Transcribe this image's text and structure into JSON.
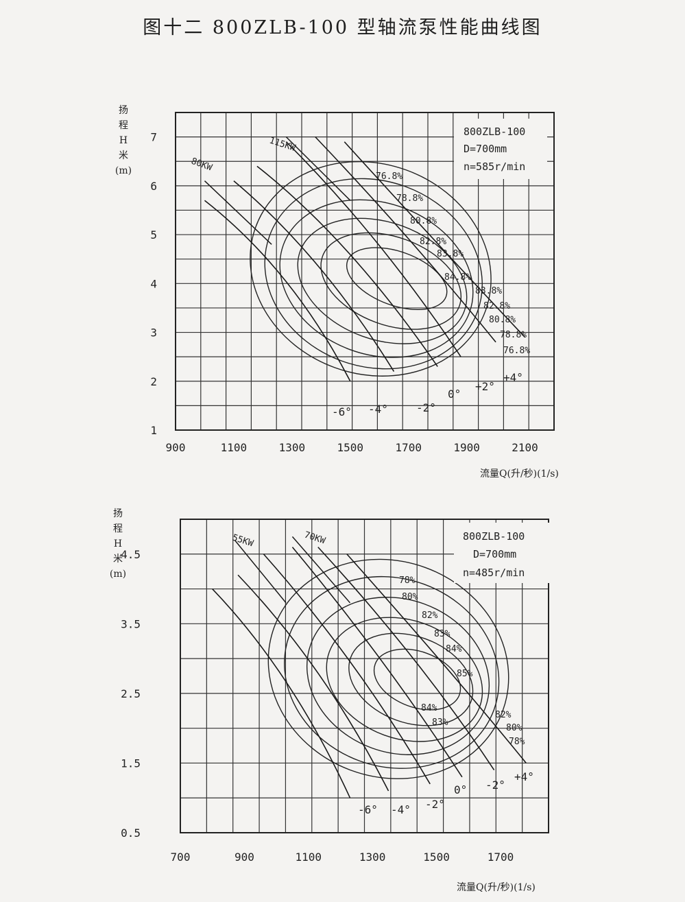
{
  "title": "图十二  800ZLB-100 型轴流泵性能曲线图",
  "chart_data": [
    {
      "type": "line",
      "ylabel_chars": [
        "扬",
        "程",
        "H",
        "米",
        "(m)"
      ],
      "xlabel": "流量Q(升/秒)(1/s)",
      "xlim": [
        900,
        2200
      ],
      "ylim": [
        1,
        7.5
      ],
      "xticks": [
        900,
        1100,
        1300,
        1500,
        1700,
        1900,
        2100
      ],
      "yticks": [
        1,
        2,
        3,
        4,
        5,
        6,
        7
      ],
      "grid": true,
      "info": [
        "800ZLB-100",
        "D=700mm",
        "n=585r/min"
      ],
      "blade_angle_series": [
        {
          "name": "-6°",
          "points": [
            [
              1000,
              5.7
            ],
            [
              1300,
              4.3
            ],
            [
              1500,
              2.0
            ]
          ]
        },
        {
          "name": "-4°",
          "points": [
            [
              1100,
              6.1
            ],
            [
              1400,
              4.6
            ],
            [
              1650,
              2.2
            ]
          ]
        },
        {
          "name": "-2°",
          "points": [
            [
              1180,
              6.4
            ],
            [
              1500,
              4.9
            ],
            [
              1800,
              2.3
            ]
          ]
        },
        {
          "name": "0°",
          "points": [
            [
              1280,
              6.9
            ],
            [
              1600,
              5.0
            ],
            [
              1880,
              2.5
            ]
          ]
        },
        {
          "name": "+2°",
          "points": [
            [
              1380,
              7.0
            ],
            [
              1700,
              5.0
            ],
            [
              2000,
              2.8
            ]
          ]
        },
        {
          "name": "+4°",
          "points": [
            [
              1480,
              6.9
            ],
            [
              1800,
              4.8
            ],
            [
              2100,
              2.9
            ]
          ]
        }
      ],
      "power_lines": [
        {
          "name": "80KW",
          "points": [
            [
              1000,
              6.1
            ],
            [
              1230,
              4.8
            ]
          ]
        },
        {
          "name": "115KW",
          "points": [
            [
              1280,
              7.0
            ],
            [
              1500,
              5.7
            ]
          ]
        }
      ],
      "efficiency_labels": [
        "76.8%",
        "78.8%",
        "80.8%",
        "82.8%",
        "83.8%",
        "84.8%",
        "83.8%",
        "82.8%",
        "80.8%",
        "78.8%",
        "76.8%"
      ],
      "efficiency_contours": [
        {
          "name": "76.8%",
          "center": [
            1570,
            4.3
          ],
          "rx": 420,
          "ry": 2.15
        },
        {
          "name": "78.8%",
          "center": [
            1580,
            4.2
          ],
          "rx": 380,
          "ry": 1.9
        },
        {
          "name": "80.8%",
          "center": [
            1590,
            4.1
          ],
          "rx": 340,
          "ry": 1.55
        },
        {
          "name": "82.8%",
          "center": [
            1610,
            4.05
          ],
          "rx": 300,
          "ry": 1.2
        },
        {
          "name": "83.8%",
          "center": [
            1640,
            4.05
          ],
          "rx": 250,
          "ry": 0.9
        },
        {
          "name": "84.8%",
          "center": [
            1660,
            4.1
          ],
          "rx": 180,
          "ry": 0.55
        }
      ]
    },
    {
      "type": "line",
      "ylabel_chars": [
        "扬",
        "程",
        "H",
        "米",
        "(m)"
      ],
      "xlabel": "流量Q(升/秒)(1/s)",
      "xlim": [
        700,
        1850
      ],
      "ylim": [
        0.5,
        5.0
      ],
      "xticks": [
        700,
        900,
        1100,
        1300,
        1500,
        1700
      ],
      "yticks": [
        0.5,
        1.5,
        2.5,
        3.5,
        4.5
      ],
      "yticklabels": [
        "0.5",
        "1.5",
        "2.5",
        "3.5",
        "4.5"
      ],
      "grid": true,
      "info": [
        "800ZLB-100",
        "D=700mm",
        "n=485r/min"
      ],
      "blade_angle_series": [
        {
          "name": "-6°",
          "points": [
            [
              800,
              4.0
            ],
            [
              1050,
              2.8
            ],
            [
              1230,
              1.0
            ]
          ]
        },
        {
          "name": "-4°",
          "points": [
            [
              880,
              4.2
            ],
            [
              1150,
              2.9
            ],
            [
              1350,
              1.1
            ]
          ]
        },
        {
          "name": "-2°",
          "points": [
            [
              960,
              4.5
            ],
            [
              1250,
              3.0
            ],
            [
              1480,
              1.2
            ]
          ]
        },
        {
          "name": "0°",
          "points": [
            [
              1050,
              4.6
            ],
            [
              1340,
              3.0
            ],
            [
              1580,
              1.3
            ]
          ]
        },
        {
          "name": "-2°",
          "points": [
            [
              1130,
              4.6
            ],
            [
              1450,
              3.0
            ],
            [
              1680,
              1.4
            ]
          ]
        },
        {
          "name": "+4°",
          "points": [
            [
              1220,
              4.5
            ],
            [
              1550,
              2.8
            ],
            [
              1780,
              1.5
            ]
          ]
        }
      ],
      "power_lines": [
        {
          "name": "55KW",
          "points": [
            [
              870,
              4.7
            ],
            [
              1030,
              3.8
            ]
          ]
        },
        {
          "name": "70KW",
          "points": [
            [
              1050,
              4.75
            ],
            [
              1230,
              3.8
            ]
          ]
        }
      ],
      "efficiency_labels": [
        "78%",
        "80%",
        "82%",
        "83%",
        "84%",
        "85%",
        "84%",
        "83%",
        "82%",
        "80%",
        "78%"
      ],
      "efficiency_contours": [
        {
          "name": "78%",
          "center": [
            1350,
            2.85
          ],
          "rx": 380,
          "ry": 1.55
        },
        {
          "name": "80%",
          "center": [
            1360,
            2.8
          ],
          "rx": 340,
          "ry": 1.35
        },
        {
          "name": "82%",
          "center": [
            1380,
            2.75
          ],
          "rx": 290,
          "ry": 1.1
        },
        {
          "name": "83%",
          "center": [
            1400,
            2.7
          ],
          "rx": 250,
          "ry": 0.85
        },
        {
          "name": "84%",
          "center": [
            1420,
            2.7
          ],
          "rx": 200,
          "ry": 0.62
        },
        {
          "name": "85%",
          "center": [
            1440,
            2.7
          ],
          "rx": 140,
          "ry": 0.4
        }
      ]
    }
  ]
}
